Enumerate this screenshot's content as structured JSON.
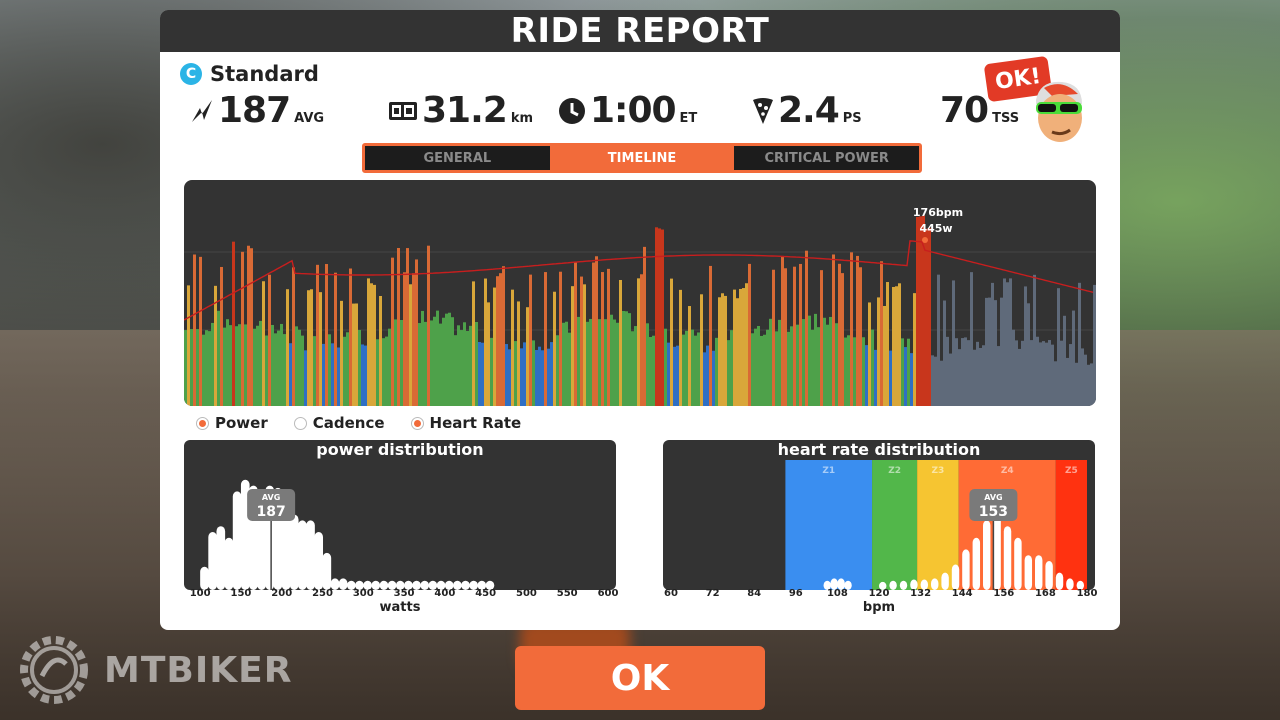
{
  "header": {
    "title": "RIDE REPORT"
  },
  "workout": {
    "icon_letter": "C",
    "name": "Standard"
  },
  "stats": {
    "power": {
      "value": "187",
      "unit": "AVG",
      "icon": "power-bolt-icon"
    },
    "distance": {
      "value": "31.2",
      "unit": "km",
      "icon": "odometer-icon"
    },
    "time": {
      "value": "1:00",
      "unit": "ET",
      "icon": "clock-icon"
    },
    "pizza": {
      "value": "2.4",
      "unit": "PS",
      "icon": "pizza-icon"
    },
    "tss": {
      "value": "70",
      "unit": "TSS"
    }
  },
  "badge": {
    "text": "OK!"
  },
  "tabs": [
    {
      "label": "GENERAL",
      "active": false
    },
    {
      "label": "TIMELINE",
      "active": true
    },
    {
      "label": "CRITICAL POWER",
      "active": false
    }
  ],
  "timeline": {
    "peak_hr": "176bpm",
    "peak_power": "445w"
  },
  "legend": [
    {
      "label": "Power",
      "checked": true
    },
    {
      "label": "Cadence",
      "checked": false
    },
    {
      "label": "Heart Rate",
      "checked": true
    }
  ],
  "power_distribution": {
    "title": "power distribution",
    "avg_label": "AVG",
    "avg_value": "187",
    "xlabel": "watts",
    "ticks": [
      "100",
      "150",
      "200",
      "250",
      "300",
      "350",
      "400",
      "450",
      "500",
      "550",
      "600"
    ]
  },
  "hr_distribution": {
    "title": "heart rate distribution",
    "avg_label": "AVG",
    "avg_value": "153",
    "xlabel": "bpm",
    "ticks": [
      "60",
      "72",
      "84",
      "96",
      "108",
      "120",
      "132",
      "144",
      "156",
      "168",
      "180"
    ],
    "zones": [
      {
        "label": "Z1",
        "color": "#3a8ef0"
      },
      {
        "label": "Z2",
        "color": "#52b74a"
      },
      {
        "label": "Z3",
        "color": "#f6c531"
      },
      {
        "label": "Z4",
        "color": "#ff6b35"
      },
      {
        "label": "Z5",
        "color": "#ff3210"
      }
    ]
  },
  "ok_button": {
    "label": "OK"
  },
  "watermark": {
    "text": "MTBIKER"
  },
  "colors": {
    "accent": "#f26b3a",
    "panel_dark": "#333333"
  },
  "chart_data": [
    {
      "type": "bar",
      "title": "power distribution",
      "xlabel": "watts",
      "categories": [
        "100",
        "110",
        "120",
        "130",
        "140",
        "150",
        "160",
        "170",
        "180",
        "190",
        "200",
        "210",
        "220",
        "230",
        "240",
        "250",
        "260",
        "270",
        "280",
        "290",
        "300",
        "310",
        "320",
        "330",
        "340",
        "350",
        "360",
        "370",
        "380",
        "390",
        "400",
        "410",
        "420",
        "430",
        "440",
        "450"
      ],
      "values": [
        0.2,
        0.5,
        0.55,
        0.45,
        0.85,
        0.95,
        0.9,
        0.85,
        0.9,
        0.88,
        0.8,
        0.65,
        0.6,
        0.6,
        0.5,
        0.32,
        0.1,
        0.1,
        0.08,
        0.08,
        0.08,
        0.08,
        0.08,
        0.08,
        0.08,
        0.08,
        0.08,
        0.08,
        0.08,
        0.08,
        0.08,
        0.08,
        0.08,
        0.08,
        0.08,
        0.08
      ],
      "avg": 187,
      "xlim": [
        90,
        600
      ]
    },
    {
      "type": "bar",
      "title": "heart rate distribution",
      "xlabel": "bpm",
      "categories": [
        "104",
        "106",
        "108",
        "110",
        "120",
        "123",
        "126",
        "129",
        "132",
        "135",
        "138",
        "141",
        "144",
        "147",
        "150",
        "153",
        "156",
        "159",
        "162",
        "165",
        "168",
        "171",
        "174",
        "177"
      ],
      "values": [
        0.08,
        0.1,
        0.1,
        0.08,
        0.07,
        0.08,
        0.08,
        0.09,
        0.09,
        0.1,
        0.15,
        0.22,
        0.35,
        0.45,
        0.6,
        0.75,
        0.55,
        0.45,
        0.3,
        0.3,
        0.25,
        0.15,
        0.1,
        0.08
      ],
      "avg": 153,
      "xlim": [
        60,
        180
      ]
    }
  ]
}
